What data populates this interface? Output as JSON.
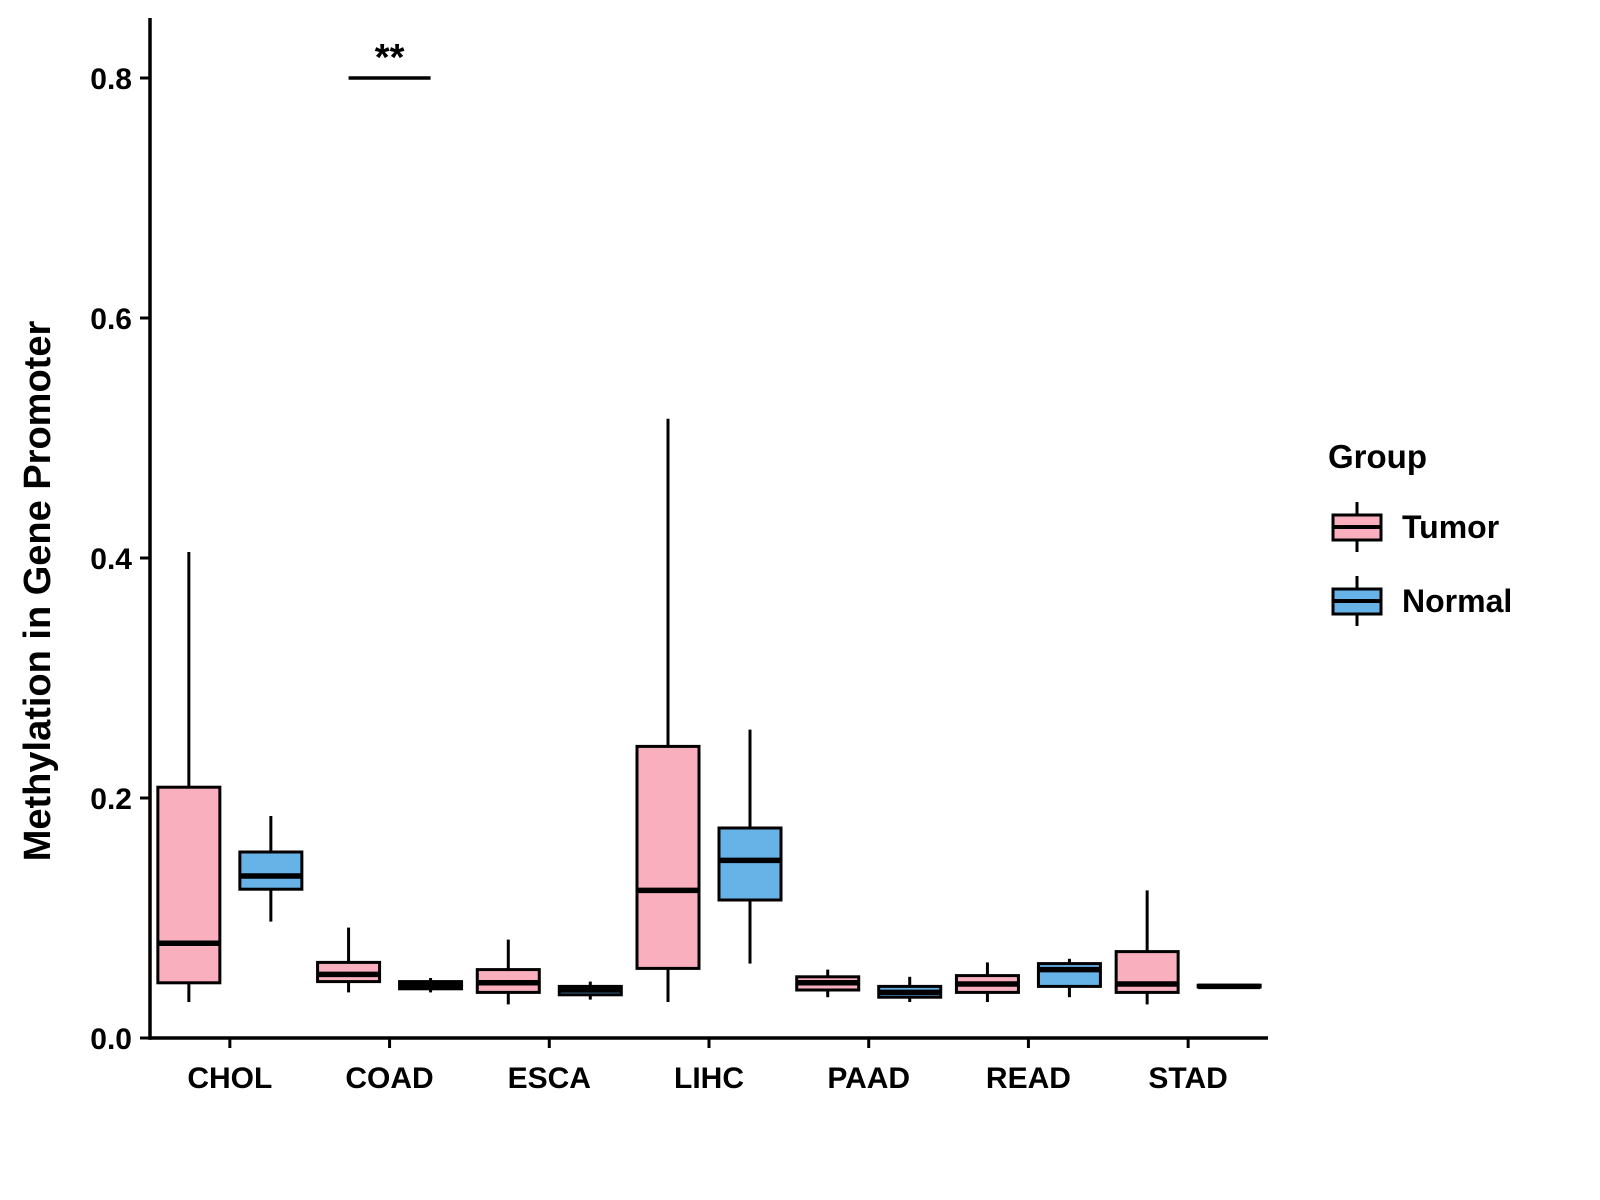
{
  "figure": {
    "y_axis_title": "Methylation in Gene Promoter",
    "legend": {
      "title": "Group",
      "entries": [
        {
          "label": "Tumor",
          "color": "#F9AFBE"
        },
        {
          "label": "Normal",
          "color": "#67B3E8"
        }
      ]
    }
  },
  "chart_data": {
    "type": "boxplot",
    "title": "",
    "xlabel": "",
    "ylabel": "Methylation in Gene Promoter",
    "ylim": [
      0,
      0.85
    ],
    "yticks": [
      0,
      0.2,
      0.4,
      0.6,
      0.8
    ],
    "ytick_labels": [
      "0.0",
      "0.2",
      "0.4",
      "0.6",
      "0.8"
    ],
    "grid": false,
    "legend_position": "right",
    "categories": [
      "CHOL",
      "COAD",
      "ESCA",
      "LIHC",
      "PAAD",
      "READ",
      "STAD"
    ],
    "groups": [
      "Tumor",
      "Normal"
    ],
    "series": [
      {
        "name": "Tumor",
        "color": "#F9AFBE",
        "boxes": [
          {
            "category": "CHOL",
            "min": 0.03,
            "q1": 0.046,
            "median": 0.079,
            "q3": 0.209,
            "max": 0.405
          },
          {
            "category": "COAD",
            "min": 0.038,
            "q1": 0.047,
            "median": 0.053,
            "q3": 0.063,
            "max": 0.092
          },
          {
            "category": "ESCA",
            "min": 0.028,
            "q1": 0.038,
            "median": 0.046,
            "q3": 0.057,
            "max": 0.082
          },
          {
            "category": "LIHC",
            "min": 0.03,
            "q1": 0.058,
            "median": 0.123,
            "q3": 0.243,
            "max": 0.516
          },
          {
            "category": "PAAD",
            "min": 0.034,
            "q1": 0.04,
            "median": 0.046,
            "q3": 0.051,
            "max": 0.057
          },
          {
            "category": "READ",
            "min": 0.03,
            "q1": 0.038,
            "median": 0.045,
            "q3": 0.052,
            "max": 0.063
          },
          {
            "category": "STAD",
            "min": 0.028,
            "q1": 0.038,
            "median": 0.045,
            "q3": 0.072,
            "max": 0.123
          }
        ]
      },
      {
        "name": "Normal",
        "color": "#67B3E8",
        "boxes": [
          {
            "category": "CHOL",
            "min": 0.097,
            "q1": 0.124,
            "median": 0.135,
            "q3": 0.155,
            "max": 0.185
          },
          {
            "category": "COAD",
            "min": 0.038,
            "q1": 0.041,
            "median": 0.044,
            "q3": 0.047,
            "max": 0.05
          },
          {
            "category": "ESCA",
            "min": 0.032,
            "q1": 0.036,
            "median": 0.04,
            "q3": 0.043,
            "max": 0.047
          },
          {
            "category": "LIHC",
            "min": 0.062,
            "q1": 0.115,
            "median": 0.148,
            "q3": 0.175,
            "max": 0.257
          },
          {
            "category": "PAAD",
            "min": 0.03,
            "q1": 0.034,
            "median": 0.038,
            "q3": 0.043,
            "max": 0.051
          },
          {
            "category": "READ",
            "min": 0.034,
            "q1": 0.043,
            "median": 0.057,
            "q3": 0.062,
            "max": 0.066
          },
          {
            "category": "STAD",
            "min": 0.042,
            "q1": 0.0425,
            "median": 0.043,
            "q3": 0.044,
            "max": 0.0445
          }
        ]
      }
    ],
    "annotations": [
      {
        "type": "significance-bar",
        "text": "**",
        "category": "COAD",
        "y": 0.8
      }
    ]
  }
}
